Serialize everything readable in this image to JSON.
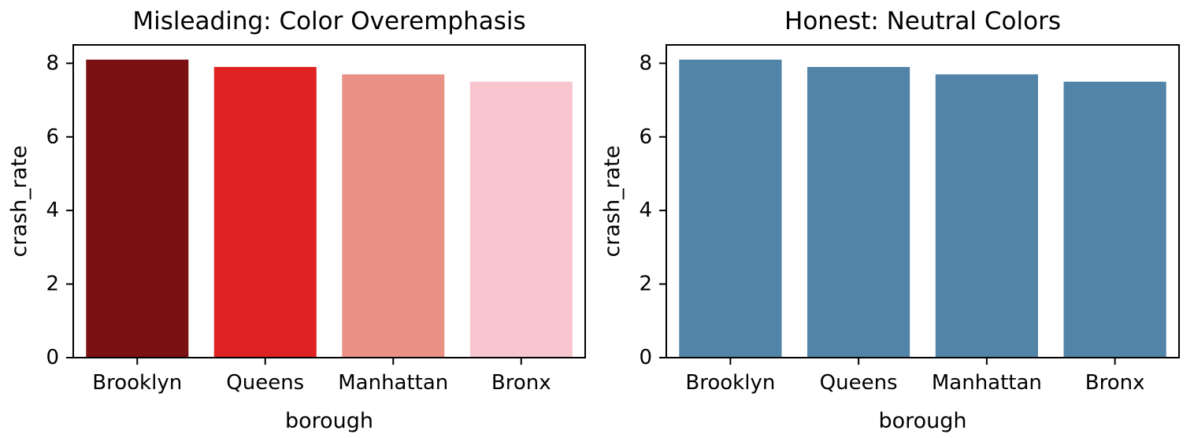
{
  "figure": {
    "background": "#ffffff"
  },
  "chart_data": [
    {
      "type": "bar",
      "title": "Misleading: Color Overemphasis",
      "xlabel": "borough",
      "ylabel": "crash_rate",
      "categories": [
        "Brooklyn",
        "Queens",
        "Manhattan",
        "Bronx"
      ],
      "values": [
        8.1,
        7.9,
        7.7,
        7.5
      ],
      "bar_colors": [
        "#7b1113",
        "#df2222",
        "#e89184",
        "#f7c6cf"
      ],
      "yticks": [
        0,
        2,
        4,
        6,
        8
      ],
      "ylim": [
        0,
        8.5
      ],
      "grid": false,
      "legend": "none",
      "axis_color": "#000000",
      "text_color": "#000000"
    },
    {
      "type": "bar",
      "title": "Honest: Neutral Colors",
      "xlabel": "borough",
      "ylabel": "crash_rate",
      "categories": [
        "Brooklyn",
        "Queens",
        "Manhattan",
        "Bronx"
      ],
      "values": [
        8.1,
        7.9,
        7.7,
        7.5
      ],
      "bar_colors": [
        "#5284a7",
        "#5284a7",
        "#5284a7",
        "#5284a7"
      ],
      "yticks": [
        0,
        2,
        4,
        6,
        8
      ],
      "ylim": [
        0,
        8.5
      ],
      "grid": false,
      "legend": "none",
      "axis_color": "#000000",
      "text_color": "#000000"
    }
  ]
}
